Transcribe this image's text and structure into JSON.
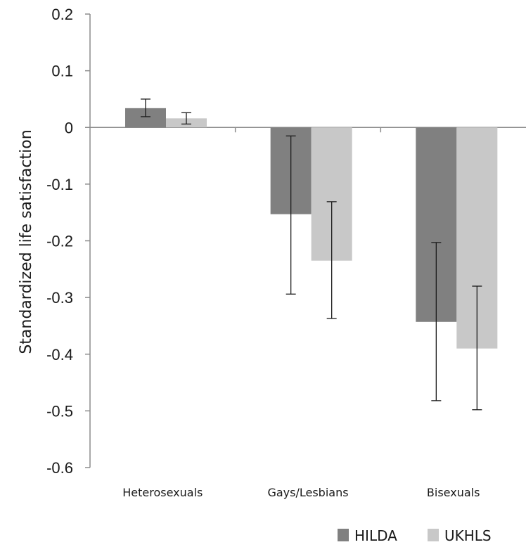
{
  "chart_data": {
    "type": "bar",
    "title": "",
    "xlabel": "",
    "ylabel": "Standardized life satisfaction",
    "categories": [
      "Heterosexuals",
      "Gays/Lesbians",
      "Bisexuals"
    ],
    "series": [
      {
        "name": "HILDA",
        "color": "#808080",
        "values": [
          0.034,
          -0.153,
          -0.343
        ],
        "error_low": [
          0.019,
          -0.294,
          -0.482
        ],
        "error_high": [
          0.05,
          -0.015,
          -0.203
        ]
      },
      {
        "name": "UKHLS",
        "color": "#c8c8c8",
        "values": [
          0.016,
          -0.235,
          -0.39
        ],
        "error_low": [
          0.006,
          -0.337,
          -0.498
        ],
        "error_high": [
          0.026,
          -0.131,
          -0.28
        ]
      }
    ],
    "ylim": [
      -0.6,
      0.2
    ],
    "yticks": [
      "0.2",
      "0.1",
      "0",
      "-0.1",
      "-0.2",
      "-0.3",
      "-0.4",
      "-0.5",
      "-0.6"
    ],
    "ytick_values": [
      0.2,
      0.1,
      0,
      -0.1,
      -0.2,
      -0.3,
      -0.4,
      -0.5,
      -0.6
    ],
    "grid": false,
    "legend": "bottom-right"
  }
}
